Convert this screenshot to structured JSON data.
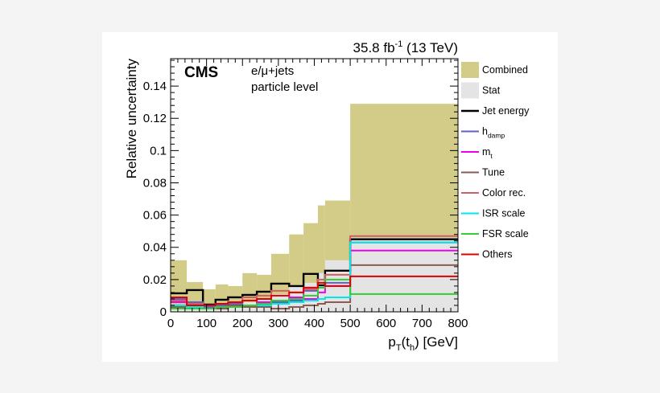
{
  "chart_data": {
    "type": "histogram",
    "title": "",
    "lumi_label": "35.8 fb",
    "lumi_sup": "-1",
    "lumi_energy": " (13 TeV)",
    "cms_label": "CMS",
    "channel_label": "e/μ+jets",
    "level_label": "particle level",
    "xlabel_main": "p",
    "xlabel_sub1": "T",
    "xlabel_mid": "(t",
    "xlabel_sub2": "h",
    "xlabel_end": ") [GeV]",
    "ylabel": "Relative uncertainty",
    "xlim": [
      0,
      800
    ],
    "ylim": [
      0,
      0.157
    ],
    "x_ticks": [
      0,
      100,
      200,
      300,
      400,
      500,
      600,
      700,
      800
    ],
    "x_tick_labels": [
      "0",
      "100",
      "200",
      "300",
      "400",
      "500",
      "600",
      "700",
      "800"
    ],
    "y_ticks": [
      0,
      0.02,
      0.04,
      0.06,
      0.08,
      0.1,
      0.12,
      0.14
    ],
    "y_tick_labels": [
      "0",
      "0.02",
      "0.04",
      "0.06",
      "0.08",
      "0.1",
      "0.12",
      "0.14"
    ],
    "bin_edges": [
      0,
      45,
      90,
      125,
      160,
      200,
      240,
      280,
      330,
      370,
      410,
      430,
      500,
      800
    ],
    "combined": {
      "name": "Combined",
      "color": "#d2cc88",
      "values": [
        0.032,
        0.0185,
        0.014,
        0.017,
        0.016,
        0.024,
        0.023,
        0.036,
        0.048,
        0.055,
        0.066,
        0.069,
        0.129
      ]
    },
    "stat": {
      "name": "Stat",
      "color": "#e4e4e4",
      "values": [
        0.003,
        0.003,
        0.004,
        0.004,
        0.005,
        0.006,
        0.008,
        0.011,
        0.016,
        0.018,
        0.024,
        0.032,
        0.046
      ]
    },
    "series": [
      {
        "name": "Jet energy",
        "color": "#000000",
        "values": [
          0.0115,
          0.0135,
          0.0045,
          0.0075,
          0.009,
          0.0105,
          0.0125,
          0.0175,
          0.016,
          0.0235,
          0.0165,
          0.0255,
          0.045
        ]
      },
      {
        "name": "h",
        "sub": "damp",
        "color": "#6060c8",
        "values": [
          0.008,
          0.006,
          0.003,
          0.004,
          0.005,
          0.007,
          0.004,
          0.006,
          0.007,
          0.013,
          0.015,
          0.018,
          0.043
        ]
      },
      {
        "name": "m",
        "sub": "t",
        "color": "#ee00ee",
        "values": [
          0.006,
          0.004,
          0.002,
          0.003,
          0.003,
          0.004,
          0.006,
          0.007,
          0.009,
          0.008,
          0.012,
          0.016,
          0.038
        ]
      },
      {
        "name": "Tune",
        "color": "#8b5a50",
        "values": [
          0.003,
          0.002,
          0.002,
          0.002,
          0.004,
          0.003,
          0.003,
          0.002,
          0.003,
          0.004,
          0.005,
          0.006,
          0.029
        ]
      },
      {
        "name": "Color rec.",
        "color": "#d06060",
        "values": [
          0.007,
          0.005,
          0.004,
          0.005,
          0.006,
          0.009,
          0.01,
          0.013,
          0.012,
          0.014,
          0.02,
          0.023,
          0.047
        ]
      },
      {
        "name": "ISR scale",
        "color": "#00e8e8",
        "values": [
          0.004,
          0.003,
          0.002,
          0.003,
          0.003,
          0.004,
          0.004,
          0.005,
          0.006,
          0.007,
          0.008,
          0.009,
          0.043
        ]
      },
      {
        "name": "FSR scale",
        "color": "#33cc33",
        "values": [
          0.002,
          0.002,
          0.002,
          0.003,
          0.003,
          0.004,
          0.005,
          0.007,
          0.008,
          0.01,
          0.015,
          0.02,
          0.011
        ]
      },
      {
        "name": "Others",
        "color": "#e00000",
        "values": [
          0.009,
          0.004,
          0.004,
          0.005,
          0.006,
          0.007,
          0.008,
          0.01,
          0.012,
          0.015,
          0.018,
          0.016,
          0.022
        ]
      }
    ]
  }
}
